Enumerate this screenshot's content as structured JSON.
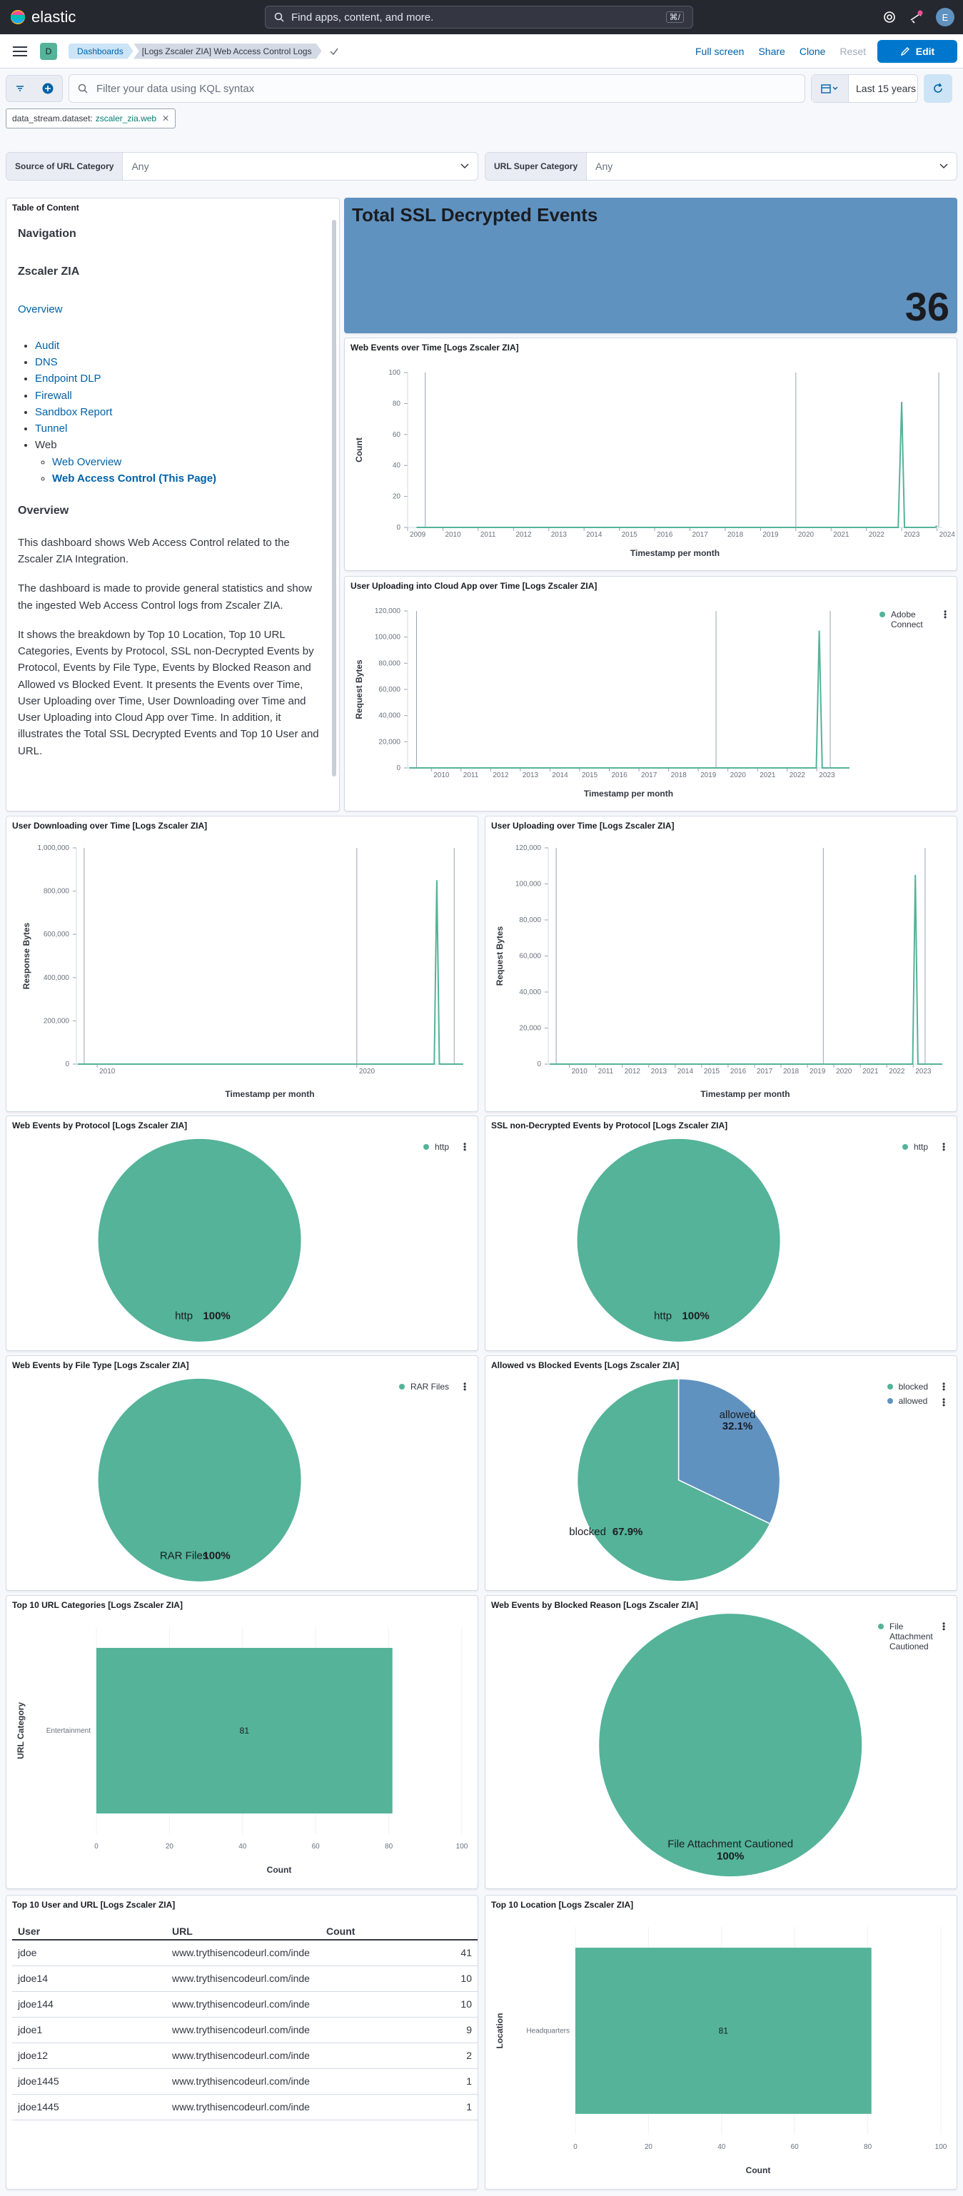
{
  "topbar": {
    "logo_text": "elastic",
    "search_placeholder": "Find apps, content, and more.",
    "search_shortcut": "⌘/",
    "avatar_initial": "E"
  },
  "navbar": {
    "space_initial": "D",
    "breadcrumbs": [
      "Dashboards",
      "[Logs Zscaler ZIA] Web Access Control Logs"
    ],
    "actions": {
      "full_screen": "Full screen",
      "share": "Share",
      "clone": "Clone",
      "reset": "Reset",
      "edit": "Edit"
    }
  },
  "query": {
    "placeholder": "Filter your data using KQL syntax",
    "time_range": "Last 15 years",
    "filter_pill": {
      "field": "data_stream.dataset:",
      "value": "zscaler_zia.web"
    }
  },
  "controls": [
    {
      "label": "Source of URL Category",
      "value": "Any"
    },
    {
      "label": "URL Super Category",
      "value": "Any"
    }
  ],
  "toc": {
    "panel_title": "Table of Content",
    "nav_heading": "Navigation",
    "zia_heading": "Zscaler ZIA",
    "overview_link": "Overview",
    "links": [
      "Audit",
      "DNS",
      "Endpoint DLP",
      "Firewall",
      "Sandbox Report",
      "Tunnel"
    ],
    "web_label": "Web",
    "web_links": [
      "Web Overview",
      "Web Access Control (This Page)"
    ],
    "overview_heading": "Overview",
    "para1": "This dashboard shows Web Access Control related to the Zscaler ZIA Integration.",
    "para2": "The dashboard is made to provide general statistics and show the ingested Web Access Control logs from Zscaler ZIA.",
    "para3": "It shows the breakdown by Top 10 Location, Top 10 URL Categories, Events by Protocol, SSL non-Decrypted Events by Protocol, Events by File Type, Events by Blocked Reason and Allowed vs Blocked Event. It presents the Events over Time, User Uploading over Time, User Downloading over Time and User Uploading into Cloud App over Time. In addition, it illustrates the Total SSL Decrypted Events and Top 10 User and URL."
  },
  "metric": {
    "title": "Total SSL Decrypted Events",
    "value": "36",
    "color": "#6092c0"
  },
  "colors": {
    "green": "#54b399",
    "blue": "#6092c0",
    "link": "#0061a6",
    "primary": "#0077cc"
  },
  "chart_data": [
    {
      "id": "web_events_time",
      "type": "line",
      "title": "Web Events over Time [Logs Zscaler ZIA]",
      "xlabel": "Timestamp per month",
      "ylabel": "Count",
      "x_ticks": [
        "2009",
        "2010",
        "2011",
        "2012",
        "2013",
        "2014",
        "2015",
        "2016",
        "2017",
        "2018",
        "2019",
        "2020",
        "2021",
        "2022",
        "2023",
        "2024"
      ],
      "y_ticks": [
        "0",
        "20",
        "40",
        "60",
        "80",
        "100"
      ],
      "ylim": [
        0,
        100
      ],
      "xlim": [
        2009,
        2024.15
      ],
      "vlines": [
        2009.5,
        2020,
        2024.05
      ],
      "x": [
        2009.25,
        2022.9,
        2023.0,
        2023.08,
        2023.95,
        2024.0
      ],
      "values": [
        0,
        0,
        81,
        0,
        0,
        1
      ]
    },
    {
      "id": "cloud_upload_time",
      "type": "line",
      "title": "User Uploading into Cloud App over Time [Logs Zscaler ZIA]",
      "xlabel": "Timestamp per month",
      "ylabel": "Request Bytes",
      "legend": [
        "Adobe Connect"
      ],
      "x_ticks": [
        "2010",
        "2011",
        "2012",
        "2013",
        "2014",
        "2015",
        "2016",
        "2017",
        "2018",
        "2019",
        "2020",
        "2021",
        "2022",
        "2023"
      ],
      "y_ticks": [
        "0",
        "20,000",
        "40,000",
        "60,000",
        "80,000",
        "100,000",
        "120,000"
      ],
      "ylim": [
        0,
        120000
      ],
      "xlim": [
        2009.2,
        2024.1
      ],
      "vlines": [
        2009.5,
        2019.6,
        2023.45
      ],
      "x": [
        2009.25,
        2022.98,
        2023.08,
        2023.18,
        2024.1
      ],
      "values": [
        0,
        0,
        105000,
        0,
        0
      ]
    },
    {
      "id": "download_time",
      "type": "line",
      "title": "User Downloading over Time [Logs Zscaler ZIA]",
      "xlabel": "Timestamp per month",
      "ylabel": "Response Bytes",
      "x_ticks": [
        "2010",
        "2020"
      ],
      "y_ticks": [
        "0",
        "200,000",
        "400,000",
        "600,000",
        "800,000",
        "1,000,000"
      ],
      "ylim": [
        0,
        1000000
      ],
      "xlim": [
        2009.2,
        2024.1
      ],
      "vlines": [
        2009.5,
        2020,
        2023.75
      ],
      "x": [
        2009.25,
        2022.98,
        2023.08,
        2023.18,
        2024.1
      ],
      "values": [
        0,
        0,
        850000,
        0,
        0
      ]
    },
    {
      "id": "upload_time",
      "type": "line",
      "title": "User Uploading over Time [Logs Zscaler ZIA]",
      "xlabel": "Timestamp per month",
      "ylabel": "Request Bytes",
      "x_ticks": [
        "2010",
        "2011",
        "2012",
        "2013",
        "2014",
        "2015",
        "2016",
        "2017",
        "2018",
        "2019",
        "2020",
        "2021",
        "2022",
        "2023"
      ],
      "y_ticks": [
        "0",
        "20,000",
        "40,000",
        "60,000",
        "80,000",
        "100,000",
        "120,000"
      ],
      "ylim": [
        0,
        120000
      ],
      "xlim": [
        2009.2,
        2024.1
      ],
      "vlines": [
        2009.5,
        2019.6,
        2023.45
      ],
      "x": [
        2009.25,
        2022.98,
        2023.08,
        2023.18,
        2024.1
      ],
      "values": [
        0,
        0,
        105000,
        0,
        0
      ]
    },
    {
      "id": "protocol",
      "type": "pie",
      "title": "Web Events by Protocol [Logs Zscaler ZIA]",
      "labels": [
        "http"
      ],
      "values": [
        100
      ],
      "label_texts": [
        "http"
      ],
      "pct_texts": [
        "100%"
      ]
    },
    {
      "id": "ssl_protocol",
      "type": "pie",
      "title": "SSL non-Decrypted Events by Protocol [Logs Zscaler ZIA]",
      "labels": [
        "http"
      ],
      "values": [
        100
      ],
      "label_texts": [
        "http"
      ],
      "pct_texts": [
        "100%"
      ]
    },
    {
      "id": "file_type",
      "type": "pie",
      "title": "Web Events by File Type [Logs Zscaler ZIA]",
      "labels": [
        "RAR Files"
      ],
      "values": [
        100
      ],
      "label_texts": [
        "RAR Files"
      ],
      "pct_texts": [
        "100%"
      ]
    },
    {
      "id": "allowed_blocked",
      "type": "pie",
      "title": "Allowed vs Blocked Events [Logs Zscaler ZIA]",
      "labels": [
        "blocked",
        "allowed"
      ],
      "values": [
        67.9,
        32.1
      ],
      "label_texts": [
        "blocked",
        "allowed"
      ],
      "pct_texts": [
        "67.9%",
        "32.1%"
      ]
    },
    {
      "id": "url_categories",
      "type": "bar",
      "title": "Top 10 URL Categories [Logs Zscaler ZIA]",
      "xlabel": "Count",
      "ylabel": "URL Category",
      "categories": [
        "Entertainment"
      ],
      "values": [
        81
      ],
      "value_labels": [
        "81"
      ],
      "x_ticks": [
        "0",
        "20",
        "40",
        "60",
        "80",
        "100"
      ],
      "xlim": [
        0,
        100
      ]
    },
    {
      "id": "blocked_reason",
      "type": "pie",
      "title": "Web Events by Blocked Reason [Logs Zscaler ZIA]",
      "labels": [
        "File Attachment Cautioned"
      ],
      "values": [
        100
      ],
      "label_texts": [
        "File Attachment Cautioned"
      ],
      "pct_texts": [
        "100%"
      ]
    },
    {
      "id": "user_url",
      "type": "table",
      "title": "Top 10 User and URL [Logs Zscaler ZIA]",
      "columns": [
        "User",
        "URL",
        "Count"
      ],
      "rows": [
        [
          "jdoe",
          "www.trythisencodeurl.com/inde",
          "41"
        ],
        [
          "jdoe14",
          "www.trythisencodeurl.com/inde",
          "10"
        ],
        [
          "jdoe144",
          "www.trythisencodeurl.com/inde",
          "10"
        ],
        [
          "jdoe1",
          "www.trythisencodeurl.com/inde",
          "9"
        ],
        [
          "jdoe12",
          "www.trythisencodeurl.com/inde",
          "2"
        ],
        [
          "jdoe1445",
          "www.trythisencodeurl.com/inde",
          "1"
        ],
        [
          "jdoe1445",
          "www.trythisencodeurl.com/inde",
          "1"
        ]
      ]
    },
    {
      "id": "location",
      "type": "bar",
      "title": "Top 10 Location [Logs Zscaler ZIA]",
      "xlabel": "Count",
      "ylabel": "Location",
      "categories": [
        "Headquarters"
      ],
      "values": [
        81
      ],
      "value_labels": [
        "81"
      ],
      "x_ticks": [
        "0",
        "20",
        "40",
        "60",
        "80",
        "100"
      ],
      "xlim": [
        0,
        100
      ]
    }
  ]
}
